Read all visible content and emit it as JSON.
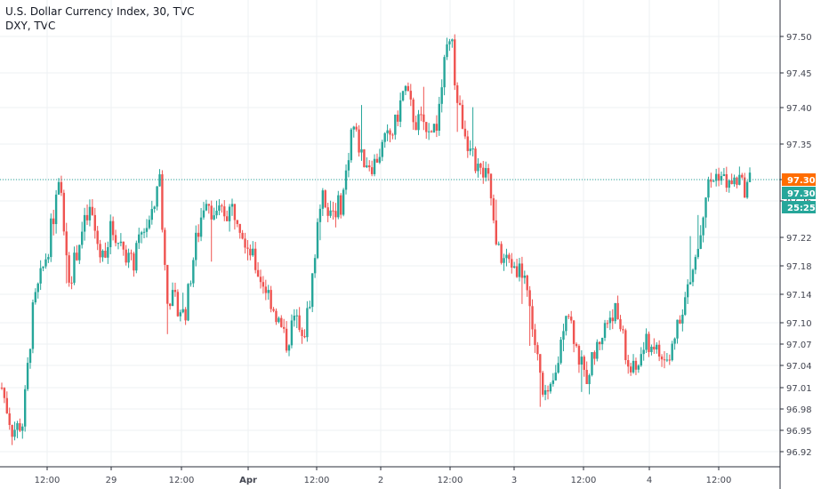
{
  "header": {
    "title": "U.S. Dollar Currency Index, 30, TVC",
    "subtitle": "DXY, TVC"
  },
  "colors": {
    "up": "#26a69a",
    "down": "#ef5350",
    "line": "#ff6d00",
    "last_price_badge": "#ff6d00",
    "bid_badge": "#26a69a",
    "grid": "#eef0f3"
  },
  "chart_data": {
    "type": "candlestick",
    "instrument": "DXY",
    "timeframe": "30",
    "ylim": [
      96.895,
      97.545
    ],
    "y_ticks": [
      "97.50",
      "97.45",
      "97.40",
      "97.35",
      "97.30",
      "97.26",
      "97.22",
      "97.18",
      "97.14",
      "97.10",
      "97.07",
      "97.04",
      "97.01",
      "96.98",
      "96.95",
      "96.92"
    ],
    "x_ticks": [
      "12:00",
      "29",
      "12:00",
      "Apr",
      "12:00",
      "2",
      "12:00",
      "3",
      "12:00",
      "4",
      "12:00"
    ],
    "last_price": "97.30",
    "current_price": "97.30",
    "countdown": "25:25",
    "price_path": [
      {
        "t": 0,
        "p": 97.01
      },
      {
        "t": 2,
        "p": 96.95
      },
      {
        "t": 4,
        "p": 96.96
      },
      {
        "t": 6,
        "p": 97.12
      },
      {
        "t": 9,
        "p": 97.21
      },
      {
        "t": 11,
        "p": 97.29
      },
      {
        "t": 13,
        "p": 97.16
      },
      {
        "t": 15,
        "p": 97.22
      },
      {
        "t": 17,
        "p": 97.25
      },
      {
        "t": 19,
        "p": 97.19
      },
      {
        "t": 21,
        "p": 97.23
      },
      {
        "t": 23,
        "p": 97.21
      },
      {
        "t": 25,
        "p": 97.18
      },
      {
        "t": 27,
        "p": 97.23
      },
      {
        "t": 29,
        "p": 97.24
      },
      {
        "t": 30,
        "p": 97.32
      },
      {
        "t": 31.5,
        "p": 97.14
      },
      {
        "t": 33,
        "p": 97.13
      },
      {
        "t": 35,
        "p": 97.11
      },
      {
        "t": 37,
        "p": 97.21
      },
      {
        "t": 39,
        "p": 97.27
      },
      {
        "t": 41,
        "p": 97.24
      },
      {
        "t": 43,
        "p": 97.25
      },
      {
        "t": 45,
        "p": 97.25
      },
      {
        "t": 47,
        "p": 97.21
      },
      {
        "t": 49,
        "p": 97.17
      },
      {
        "t": 51,
        "p": 97.14
      },
      {
        "t": 53,
        "p": 97.1
      },
      {
        "t": 54.5,
        "p": 97.07
      },
      {
        "t": 56,
        "p": 97.11
      },
      {
        "t": 57.5,
        "p": 97.07
      },
      {
        "t": 59,
        "p": 97.14
      },
      {
        "t": 61,
        "p": 97.27
      },
      {
        "t": 63,
        "p": 97.25
      },
      {
        "t": 65,
        "p": 97.26
      },
      {
        "t": 67,
        "p": 97.38
      },
      {
        "t": 69,
        "p": 97.33
      },
      {
        "t": 71,
        "p": 97.32
      },
      {
        "t": 73,
        "p": 97.35
      },
      {
        "t": 75,
        "p": 97.37
      },
      {
        "t": 77,
        "p": 97.43
      },
      {
        "t": 79,
        "p": 97.38
      },
      {
        "t": 81,
        "p": 97.38
      },
      {
        "t": 83,
        "p": 97.37
      },
      {
        "t": 85,
        "p": 97.48
      },
      {
        "t": 86,
        "p": 97.49
      },
      {
        "t": 87,
        "p": 97.41
      },
      {
        "t": 88.5,
        "p": 97.37
      },
      {
        "t": 90,
        "p": 97.33
      },
      {
        "t": 91.5,
        "p": 97.31
      },
      {
        "t": 93,
        "p": 97.3
      },
      {
        "t": 94.5,
        "p": 97.2
      },
      {
        "t": 96,
        "p": 97.19
      },
      {
        "t": 98,
        "p": 97.18
      },
      {
        "t": 100,
        "p": 97.17
      },
      {
        "t": 101.5,
        "p": 97.09
      },
      {
        "t": 103,
        "p": 97.02
      },
      {
        "t": 104.5,
        "p": 96.99
      },
      {
        "t": 106,
        "p": 97.03
      },
      {
        "t": 108,
        "p": 97.13
      },
      {
        "t": 110,
        "p": 97.06
      },
      {
        "t": 111.5,
        "p": 97.02
      },
      {
        "t": 113,
        "p": 97.05
      },
      {
        "t": 115,
        "p": 97.09
      },
      {
        "t": 117,
        "p": 97.12
      },
      {
        "t": 118.5,
        "p": 97.09
      },
      {
        "t": 119.5,
        "p": 97.04
      },
      {
        "t": 121,
        "p": 97.03
      },
      {
        "t": 123,
        "p": 97.07
      },
      {
        "t": 124.5,
        "p": 97.07
      },
      {
        "t": 126,
        "p": 97.05
      },
      {
        "t": 127.5,
        "p": 97.04
      },
      {
        "t": 129,
        "p": 97.1
      },
      {
        "t": 131,
        "p": 97.14
      },
      {
        "t": 133,
        "p": 97.2
      },
      {
        "t": 135,
        "p": 97.29
      },
      {
        "t": 137,
        "p": 97.31
      },
      {
        "t": 139,
        "p": 97.29
      },
      {
        "t": 141,
        "p": 97.3
      },
      {
        "t": 142,
        "p": 97.28
      },
      {
        "t": 143,
        "p": 97.3
      }
    ]
  }
}
